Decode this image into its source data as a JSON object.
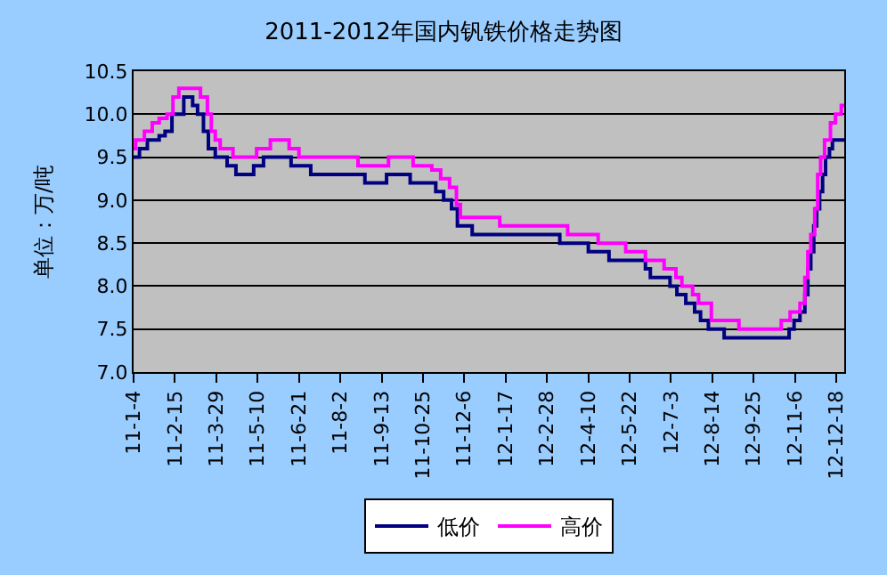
{
  "chart_data": {
    "type": "step",
    "title": "2011-2012年国内钒铁价格走势图",
    "ylabel": "单位：万/吨",
    "xlim": [
      "2011-01-04",
      "2012-12-26"
    ],
    "xticks": [
      {
        "value": "2011-01-04",
        "label": "11-1-4"
      },
      {
        "value": "2011-02-15",
        "label": "11-2-15"
      },
      {
        "value": "2011-03-29",
        "label": "11-3-29"
      },
      {
        "value": "2011-05-10",
        "label": "11-5-10"
      },
      {
        "value": "2011-06-21",
        "label": "11-6-21"
      },
      {
        "value": "2011-08-02",
        "label": "11-8-2"
      },
      {
        "value": "2011-09-13",
        "label": "11-9-13"
      },
      {
        "value": "2011-10-25",
        "label": "11-10-25"
      },
      {
        "value": "2011-12-06",
        "label": "11-12-6"
      },
      {
        "value": "2012-01-17",
        "label": "12-1-17"
      },
      {
        "value": "2012-02-28",
        "label": "12-2-28"
      },
      {
        "value": "2012-04-10",
        "label": "12-4-10"
      },
      {
        "value": "2012-05-22",
        "label": "12-5-22"
      },
      {
        "value": "2012-07-03",
        "label": "12-7-3"
      },
      {
        "value": "2012-08-14",
        "label": "12-8-14"
      },
      {
        "value": "2012-09-25",
        "label": "12-9-25"
      },
      {
        "value": "2012-11-06",
        "label": "12-11-6"
      },
      {
        "value": "2012-12-18",
        "label": "12-12-18"
      }
    ],
    "ylim": [
      7.0,
      10.5
    ],
    "yticks": [
      {
        "value": 7,
        "label": "7.0"
      },
      {
        "value": 7.5,
        "label": "7.5"
      },
      {
        "value": 8,
        "label": "8.0"
      },
      {
        "value": 8.5,
        "label": "8.5"
      },
      {
        "value": 9,
        "label": "9.0"
      },
      {
        "value": 9.5,
        "label": "9.5"
      },
      {
        "value": 10,
        "label": "10.0"
      },
      {
        "value": 10.5,
        "label": "10.5"
      }
    ],
    "grid": "y",
    "legend": "bottom",
    "marker": "none",
    "line_style": "solid",
    "series": [
      {
        "name": "低价",
        "color": "#000080",
        "x": [
          "2011-01-04",
          "2011-01-10",
          "2011-01-18",
          "2011-01-30",
          "2011-02-05",
          "2011-02-12",
          "2011-02-24",
          "2011-03-05",
          "2011-03-10",
          "2011-03-16",
          "2011-03-21",
          "2011-03-28",
          "2011-04-09",
          "2011-04-18",
          "2011-05-06",
          "2011-05-16",
          "2011-06-13",
          "2011-07-03",
          "2011-08-27",
          "2011-09-18",
          "2011-10-12",
          "2011-11-07",
          "2011-11-15",
          "2011-11-23",
          "2011-11-29",
          "2011-12-14",
          "2012-03-12",
          "2012-04-10",
          "2012-05-01",
          "2012-06-07",
          "2012-06-12",
          "2012-07-02",
          "2012-07-09",
          "2012-07-18",
          "2012-07-27",
          "2012-08-02",
          "2012-08-10",
          "2012-08-26",
          "2012-10-31",
          "2012-11-05",
          "2012-11-11",
          "2012-11-16",
          "2012-11-19",
          "2012-11-22",
          "2012-11-25",
          "2012-11-28",
          "2012-12-01",
          "2012-12-04",
          "2012-12-07",
          "2012-12-11",
          "2012-12-14",
          "2012-12-26"
        ],
        "values": [
          9.5,
          9.6,
          9.7,
          9.75,
          9.8,
          10.0,
          10.2,
          10.1,
          10.0,
          9.8,
          9.6,
          9.5,
          9.4,
          9.3,
          9.4,
          9.5,
          9.4,
          9.3,
          9.2,
          9.3,
          9.2,
          9.1,
          9.0,
          8.9,
          8.7,
          8.6,
          8.5,
          8.4,
          8.3,
          8.2,
          8.1,
          8.0,
          7.9,
          7.8,
          7.7,
          7.6,
          7.5,
          7.4,
          7.5,
          7.6,
          7.7,
          7.9,
          8.2,
          8.4,
          8.7,
          8.9,
          9.1,
          9.3,
          9.5,
          9.6,
          9.7,
          9.7
        ]
      },
      {
        "name": "高价",
        "color": "#ff00ff",
        "x": [
          "2011-01-04",
          "2011-01-06",
          "2011-01-15",
          "2011-01-23",
          "2011-01-30",
          "2011-02-07",
          "2011-02-13",
          "2011-02-19",
          "2011-03-13",
          "2011-03-20",
          "2011-03-24",
          "2011-03-28",
          "2011-04-02",
          "2011-04-15",
          "2011-05-09",
          "2011-05-23",
          "2011-06-11",
          "2011-06-21",
          "2011-08-20",
          "2011-09-20",
          "2011-10-15",
          "2011-11-03",
          "2011-11-12",
          "2011-11-21",
          "2011-11-28",
          "2011-12-02",
          "2012-01-11",
          "2012-03-20",
          "2012-04-20",
          "2012-05-18",
          "2012-06-07",
          "2012-06-26",
          "2012-07-08",
          "2012-07-14",
          "2012-07-25",
          "2012-07-31",
          "2012-08-13",
          "2012-09-10",
          "2012-10-23",
          "2012-11-01",
          "2012-11-11",
          "2012-11-16",
          "2012-11-19",
          "2012-11-22",
          "2012-11-26",
          "2012-11-29",
          "2012-12-02",
          "2012-12-06",
          "2012-12-12",
          "2012-12-17",
          "2012-12-23",
          "2012-12-26"
        ],
        "values": [
          9.6,
          9.7,
          9.8,
          9.9,
          9.95,
          10.0,
          10.2,
          10.3,
          10.2,
          10.0,
          9.8,
          9.7,
          9.6,
          9.5,
          9.6,
          9.7,
          9.6,
          9.5,
          9.4,
          9.5,
          9.4,
          9.35,
          9.25,
          9.15,
          8.95,
          8.8,
          8.7,
          8.6,
          8.5,
          8.4,
          8.3,
          8.2,
          8.1,
          8.0,
          7.9,
          7.8,
          7.6,
          7.5,
          7.6,
          7.7,
          7.8,
          8.1,
          8.4,
          8.6,
          8.9,
          9.3,
          9.5,
          9.7,
          9.9,
          10.0,
          10.1,
          10.1
        ]
      }
    ]
  }
}
